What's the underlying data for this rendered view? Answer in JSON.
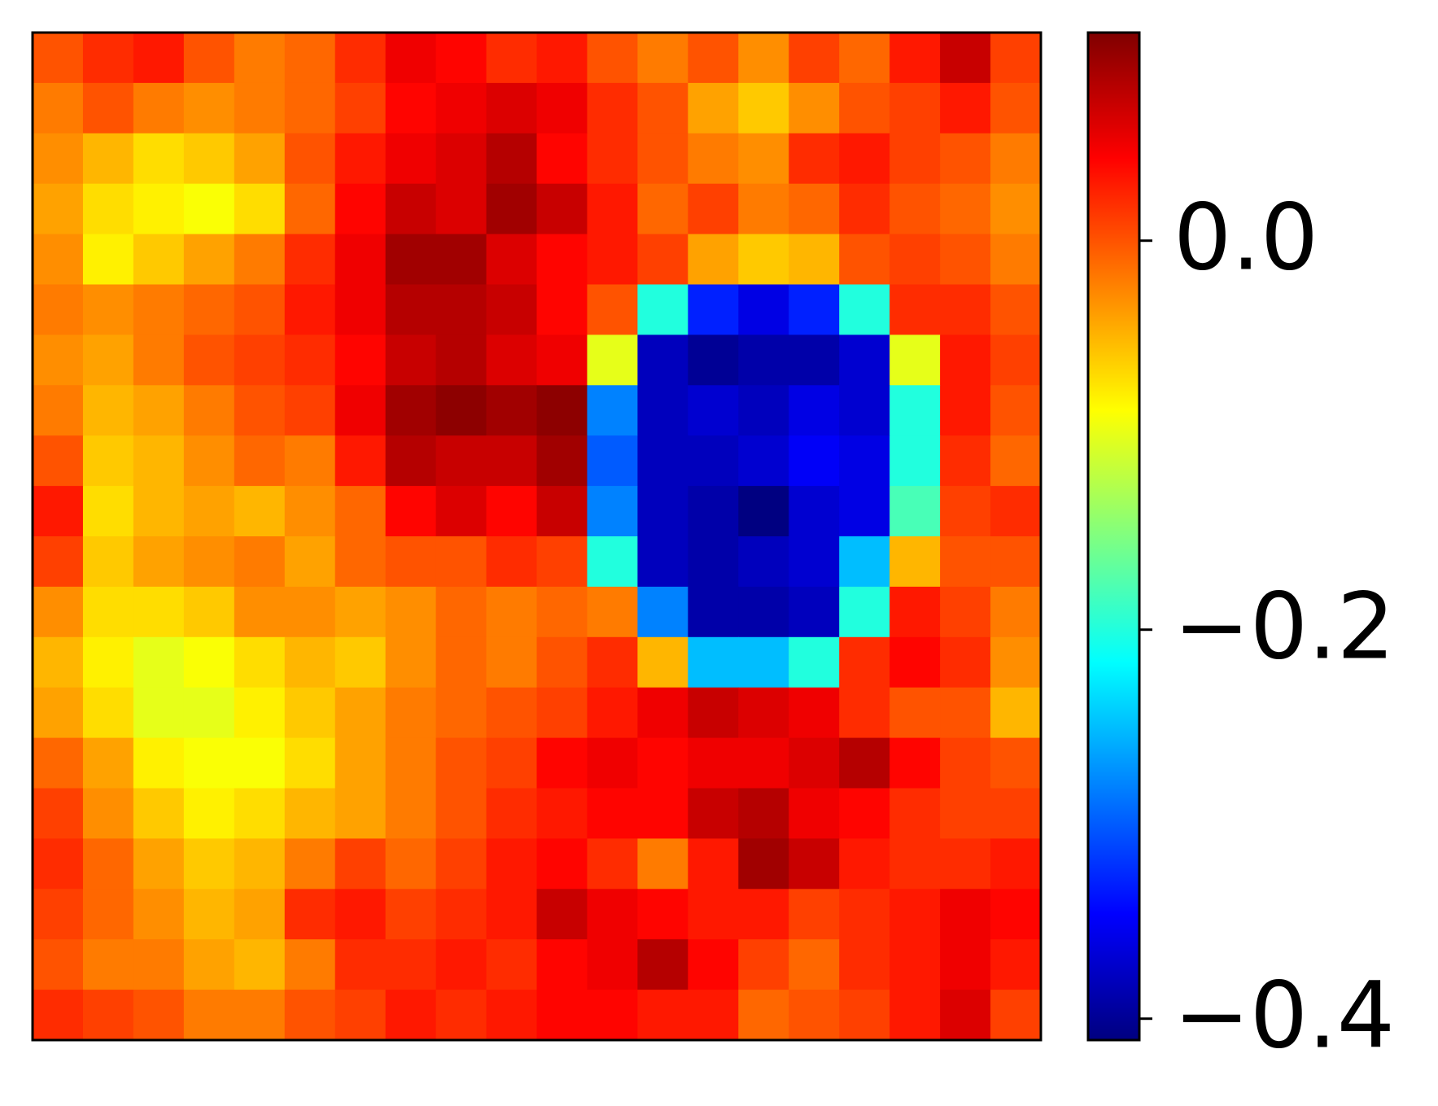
{
  "chart_data": {
    "type": "heatmap",
    "colormap": "jet",
    "zlim": [
      -0.411,
      0.107
    ],
    "colorbar_ticks": [
      {
        "value": 0,
        "label": "0.0"
      },
      {
        "value": -0.2,
        "label": "−0.2"
      },
      {
        "value": -0.4,
        "label": "−0.4"
      }
    ],
    "z": [
      [
        0.0,
        0.02,
        0.03,
        0.0,
        -0.02,
        -0.01,
        0.02,
        0.05,
        0.04,
        0.02,
        0.03,
        0.0,
        -0.02,
        0.0,
        -0.03,
        0.01,
        -0.01,
        0.03,
        0.07,
        0.01
      ],
      [
        -0.02,
        0.0,
        -0.02,
        -0.03,
        -0.02,
        -0.01,
        0.01,
        0.04,
        0.05,
        0.06,
        0.05,
        0.02,
        0.0,
        -0.04,
        -0.06,
        -0.03,
        0.0,
        0.01,
        0.03,
        0.0
      ],
      [
        -0.03,
        -0.05,
        -0.07,
        -0.06,
        -0.04,
        0.0,
        0.03,
        0.05,
        0.06,
        0.08,
        0.04,
        0.02,
        0.0,
        -0.02,
        -0.03,
        0.02,
        0.03,
        0.01,
        0.0,
        -0.02
      ],
      [
        -0.04,
        -0.07,
        -0.08,
        -0.09,
        -0.07,
        -0.01,
        0.04,
        0.07,
        0.06,
        0.09,
        0.07,
        0.03,
        -0.01,
        0.01,
        -0.02,
        -0.01,
        0.02,
        0.0,
        -0.01,
        -0.03
      ],
      [
        -0.03,
        -0.08,
        -0.06,
        -0.04,
        -0.02,
        0.02,
        0.05,
        0.09,
        0.09,
        0.06,
        0.04,
        0.03,
        0.01,
        -0.04,
        -0.06,
        -0.05,
        0.0,
        0.01,
        0.0,
        -0.02
      ],
      [
        -0.02,
        -0.03,
        -0.02,
        -0.01,
        0.0,
        0.03,
        0.05,
        0.08,
        0.08,
        0.07,
        0.04,
        0.0,
        -0.2,
        -0.33,
        -0.36,
        -0.33,
        -0.2,
        0.02,
        0.02,
        0.0
      ],
      [
        -0.03,
        -0.04,
        -0.02,
        0.0,
        0.01,
        0.02,
        0.04,
        0.07,
        0.08,
        0.06,
        0.05,
        -0.1,
        -0.38,
        -0.4,
        -0.39,
        -0.39,
        -0.37,
        -0.1,
        0.03,
        0.01
      ],
      [
        -0.02,
        -0.05,
        -0.04,
        -0.02,
        0.0,
        0.01,
        0.05,
        0.09,
        0.1,
        0.09,
        0.1,
        -0.28,
        -0.38,
        -0.37,
        -0.38,
        -0.36,
        -0.37,
        -0.2,
        0.03,
        0.0
      ],
      [
        0.0,
        -0.06,
        -0.05,
        -0.03,
        -0.01,
        -0.02,
        0.03,
        0.08,
        0.07,
        0.07,
        0.09,
        -0.3,
        -0.38,
        -0.38,
        -0.37,
        -0.35,
        -0.36,
        -0.2,
        0.02,
        -0.01
      ],
      [
        0.03,
        -0.07,
        -0.05,
        -0.04,
        -0.05,
        -0.03,
        -0.01,
        0.04,
        0.06,
        0.04,
        0.07,
        -0.28,
        -0.38,
        -0.39,
        -0.41,
        -0.37,
        -0.36,
        -0.18,
        0.01,
        0.02
      ],
      [
        0.01,
        -0.06,
        -0.04,
        -0.03,
        -0.02,
        -0.04,
        -0.01,
        0.0,
        0.0,
        0.02,
        0.01,
        -0.2,
        -0.38,
        -0.39,
        -0.38,
        -0.37,
        -0.25,
        -0.05,
        0.0,
        0.0
      ],
      [
        -0.03,
        -0.07,
        -0.07,
        -0.06,
        -0.03,
        -0.03,
        -0.04,
        -0.03,
        -0.01,
        -0.02,
        -0.01,
        -0.02,
        -0.28,
        -0.39,
        -0.39,
        -0.38,
        -0.2,
        0.03,
        0.01,
        -0.02
      ],
      [
        -0.05,
        -0.08,
        -0.1,
        -0.09,
        -0.07,
        -0.05,
        -0.06,
        -0.03,
        -0.01,
        -0.02,
        0.0,
        0.02,
        -0.05,
        -0.25,
        -0.25,
        -0.2,
        0.02,
        0.04,
        0.02,
        -0.03
      ],
      [
        -0.04,
        -0.07,
        -0.1,
        -0.1,
        -0.08,
        -0.06,
        -0.04,
        -0.02,
        -0.01,
        0.0,
        0.01,
        0.03,
        0.05,
        0.07,
        0.06,
        0.05,
        0.02,
        0.0,
        0.0,
        -0.05
      ],
      [
        -0.01,
        -0.04,
        -0.08,
        -0.09,
        -0.09,
        -0.07,
        -0.04,
        -0.02,
        0.0,
        0.01,
        0.04,
        0.05,
        0.04,
        0.05,
        0.05,
        0.06,
        0.08,
        0.04,
        0.01,
        0.0
      ],
      [
        0.01,
        -0.03,
        -0.06,
        -0.08,
        -0.07,
        -0.05,
        -0.04,
        -0.02,
        0.0,
        0.02,
        0.03,
        0.04,
        0.04,
        0.07,
        0.08,
        0.05,
        0.04,
        0.02,
        0.01,
        0.01
      ],
      [
        0.02,
        -0.01,
        -0.04,
        -0.06,
        -0.05,
        -0.02,
        0.01,
        -0.01,
        0.01,
        0.03,
        0.04,
        0.02,
        -0.02,
        0.03,
        0.09,
        0.07,
        0.03,
        0.02,
        0.02,
        0.03
      ],
      [
        0.01,
        -0.01,
        -0.03,
        -0.05,
        -0.04,
        0.02,
        0.03,
        0.01,
        0.02,
        0.03,
        0.07,
        0.05,
        0.04,
        0.03,
        0.03,
        0.01,
        0.02,
        0.03,
        0.05,
        0.04
      ],
      [
        0.0,
        -0.02,
        -0.02,
        -0.04,
        -0.05,
        -0.02,
        0.02,
        0.02,
        0.03,
        0.02,
        0.04,
        0.05,
        0.08,
        0.04,
        0.01,
        -0.01,
        0.02,
        0.03,
        0.05,
        0.03
      ],
      [
        0.02,
        0.01,
        0.0,
        -0.02,
        -0.02,
        0.0,
        0.01,
        0.03,
        0.02,
        0.03,
        0.04,
        0.04,
        0.03,
        0.03,
        -0.01,
        0.0,
        0.01,
        0.03,
        0.06,
        0.01
      ]
    ]
  }
}
